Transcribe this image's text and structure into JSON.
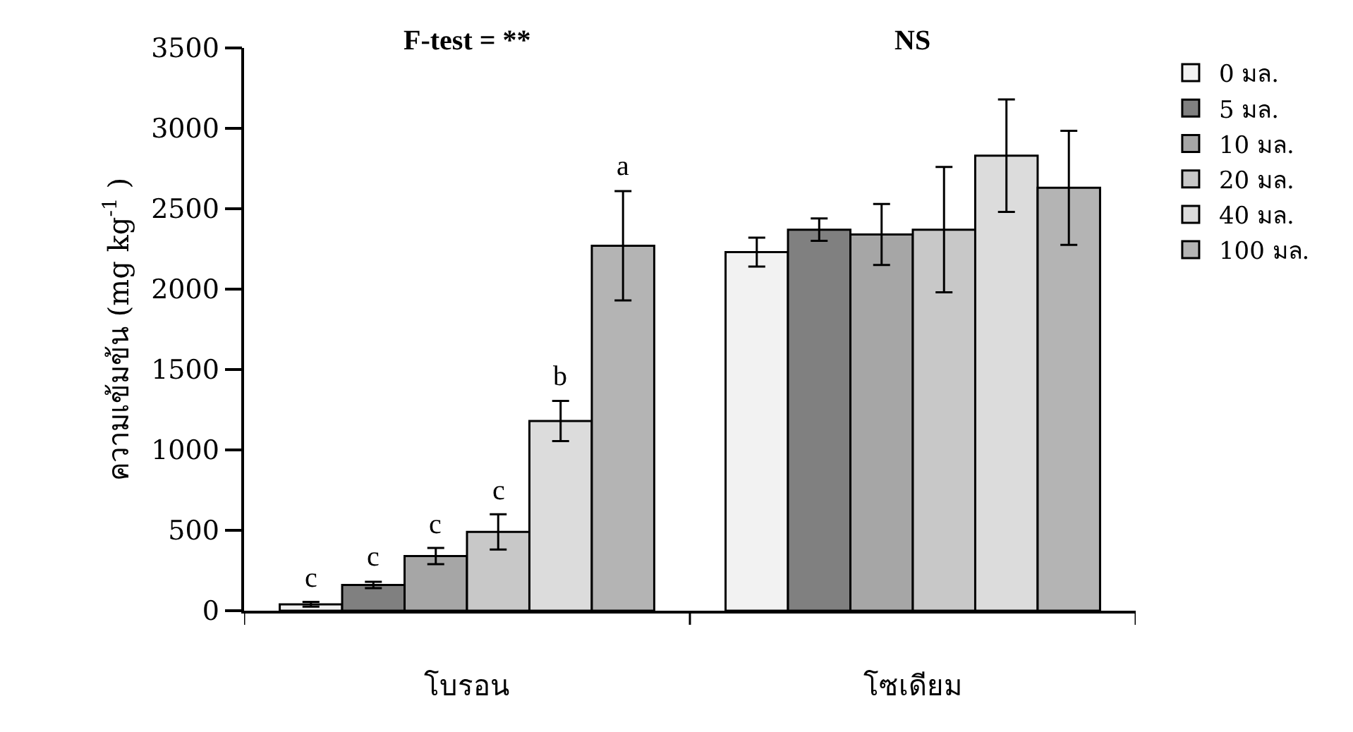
{
  "chart_data": {
    "type": "bar",
    "ylabel": "ความเข้มข้น (mg kg$^{-1}$ )",
    "categories": [
      "โบรอน",
      "โซเดียม"
    ],
    "ylim": [
      0,
      3500
    ],
    "yticks": [
      0,
      500,
      1000,
      1500,
      2000,
      2500,
      3000,
      3500
    ],
    "grid": false,
    "legend": "right",
    "annotations": [
      "F-test = **",
      "NS"
    ],
    "series": [
      {
        "name": "0 มล.",
        "color": "#f2f2f2",
        "values": [
          40,
          2230
        ],
        "errors": [
          15,
          90
        ],
        "value_labels": [
          "c",
          null
        ]
      },
      {
        "name": "5 มล.",
        "color": "#808080",
        "values": [
          160,
          2370
        ],
        "errors": [
          20,
          70
        ],
        "value_labels": [
          "c",
          null
        ]
      },
      {
        "name": "10 มล.",
        "color": "#a6a6a6",
        "values": [
          340,
          2340
        ],
        "errors": [
          50,
          190
        ],
        "value_labels": [
          "c",
          null
        ]
      },
      {
        "name": "20 มล.",
        "color": "#c8c8c8",
        "values": [
          490,
          2370
        ],
        "errors": [
          110,
          390
        ],
        "value_labels": [
          "c",
          null
        ]
      },
      {
        "name": "40 มล.",
        "color": "#dcdcdc",
        "values": [
          1180,
          2830
        ],
        "errors": [
          125,
          350
        ],
        "value_labels": [
          "b",
          null
        ]
      },
      {
        "name": "100 มล.",
        "color": "#b4b4b4",
        "values": [
          2270,
          2630
        ],
        "errors": [
          340,
          355
        ],
        "value_labels": [
          "a",
          null
        ]
      }
    ]
  }
}
